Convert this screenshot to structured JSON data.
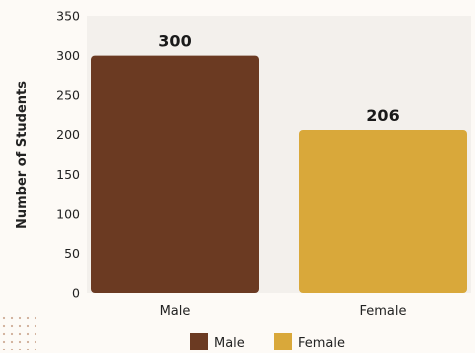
{
  "chart_data": {
    "type": "bar",
    "title": "",
    "xlabel": "",
    "ylabel": "Number of Students",
    "categories": [
      "Male",
      "Female"
    ],
    "values": [
      300,
      206
    ],
    "data_labels": [
      "300",
      "206"
    ],
    "ylim": [
      0,
      350
    ],
    "yticks": [
      0,
      50,
      100,
      150,
      200,
      250,
      300,
      350
    ],
    "colors": [
      "#6b3a22",
      "#d9a83a"
    ],
    "grid": false,
    "legend": {
      "placement": "bottom-center",
      "entries": [
        "Male",
        "Female"
      ]
    }
  },
  "theme": {
    "background": "#fdfaf6",
    "plot_background": "#f3f0ec",
    "text_color": "#222222",
    "dots_color": "#c9a28a"
  }
}
